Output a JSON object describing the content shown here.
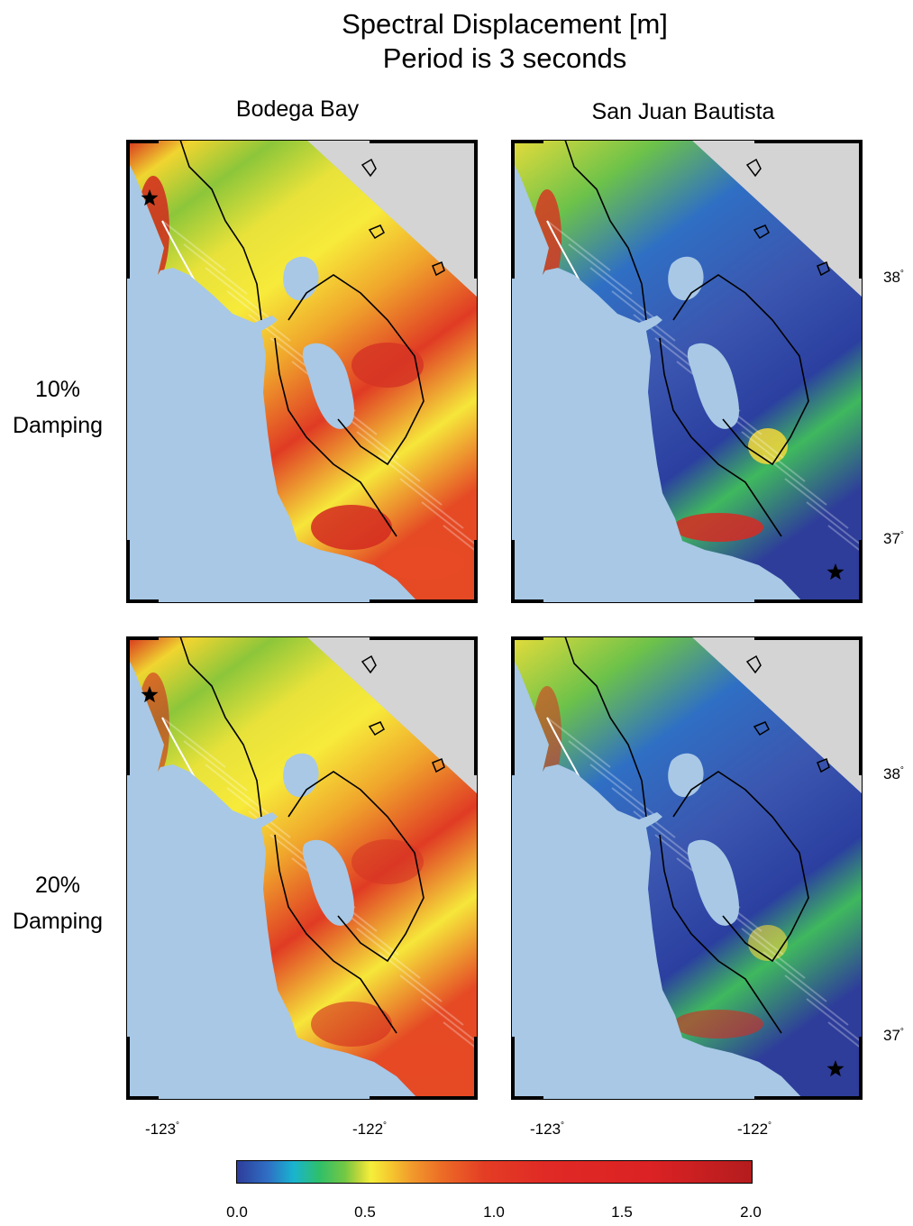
{
  "figure": {
    "title_line1": "Spectral Displacement [m]",
    "title_line2": "Period is 3 seconds",
    "columns": [
      "Bodega Bay",
      "San Juan Bautista"
    ],
    "rows": [
      {
        "line1": "10%",
        "line2": "Damping"
      },
      {
        "line1": "20%",
        "line2": "Damping"
      }
    ]
  },
  "axes": {
    "lon_ticks": [
      "-123",
      "-122"
    ],
    "lat_ticks": [
      "38",
      "37"
    ],
    "degree_symbol": "°"
  },
  "colorbar": {
    "min": 0.0,
    "max": 2.0,
    "tick_labels": [
      "0.0",
      "0.5",
      "1.0",
      "1.5",
      "2.0"
    ],
    "colors": [
      "#2e3d9a",
      "#19b4cf",
      "#2fbf6a",
      "#f5ef3a",
      "#f19a2c",
      "#e02a25",
      "#b41c1e"
    ]
  },
  "panels": [
    {
      "name": "bodega-10",
      "epicenter": "Bodega Bay",
      "damping": "10%"
    },
    {
      "name": "sjb-10",
      "epicenter": "San Juan Bautista",
      "damping": "10%"
    },
    {
      "name": "bodega-20",
      "epicenter": "Bodega Bay",
      "damping": "20%"
    },
    {
      "name": "sjb-20",
      "epicenter": "San Juan Bautista",
      "damping": "20%"
    }
  ],
  "map_colors": {
    "ocean": "#a8c8e6",
    "terrain": "#d4d4d4",
    "outline": "#000000",
    "contour": "#ffffff"
  }
}
